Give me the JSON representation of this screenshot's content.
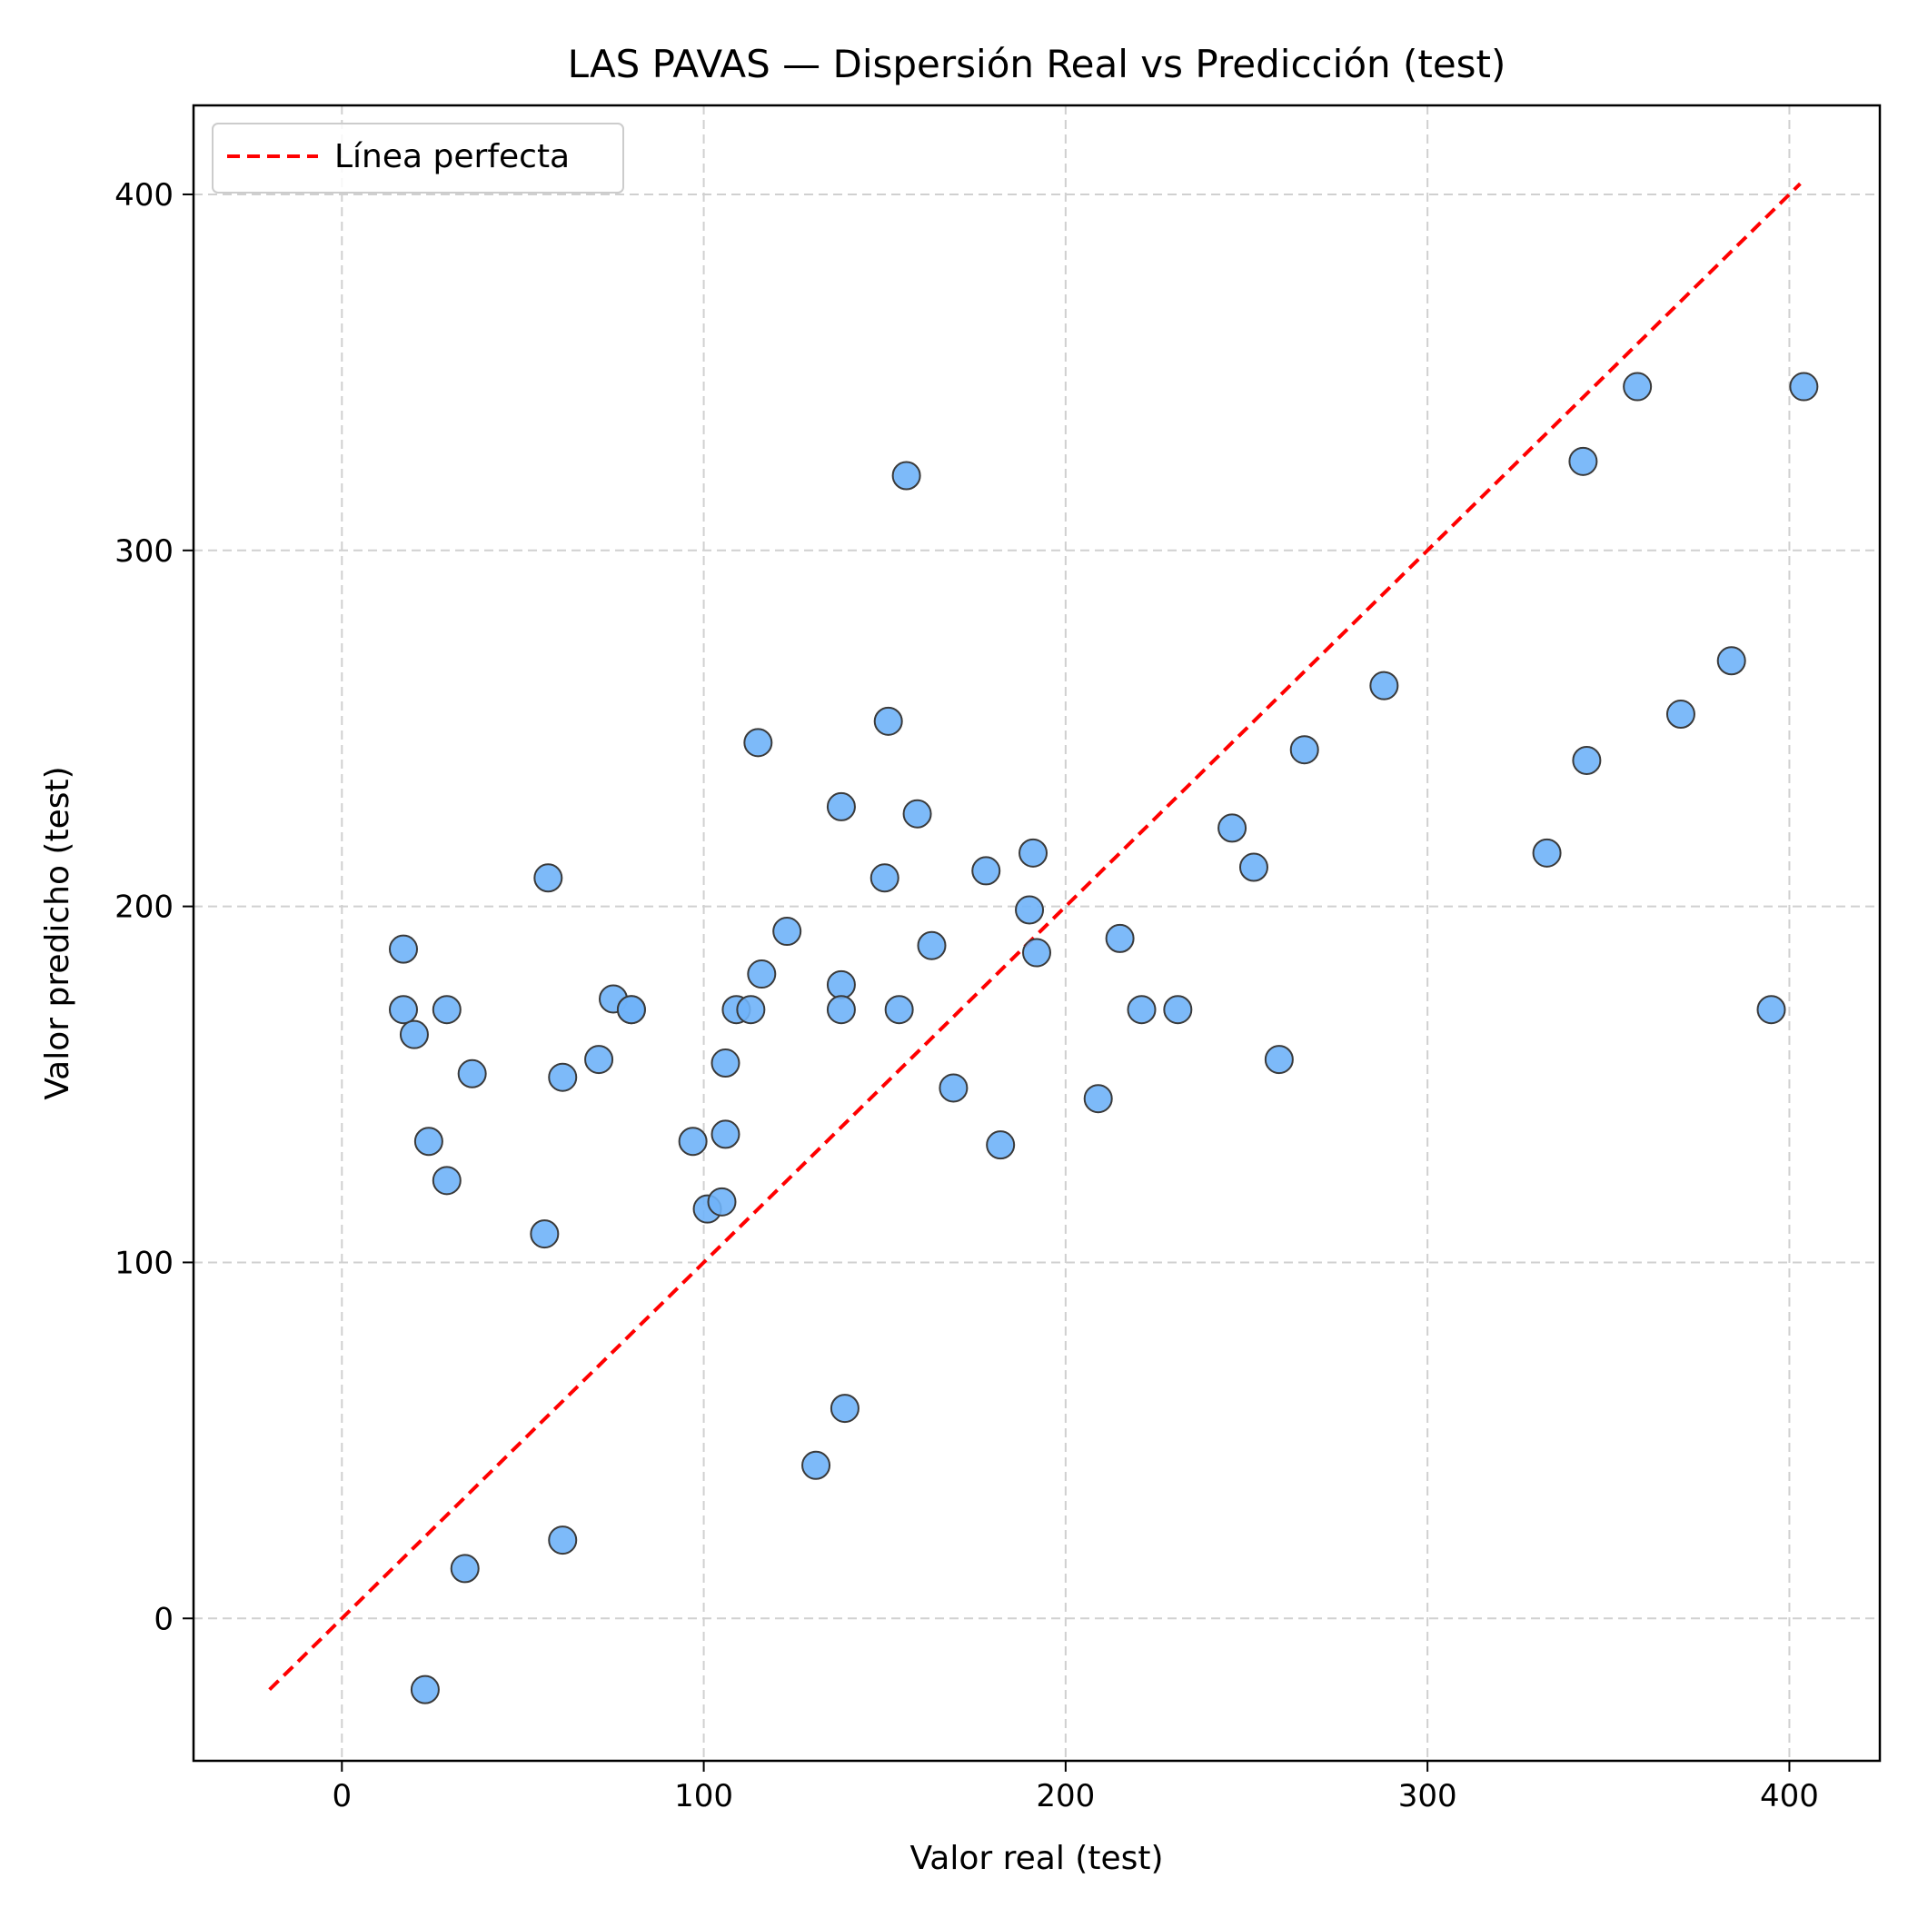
{
  "chart_data": {
    "type": "scatter",
    "title": "LAS PAVAS — Dispersión Real vs Predicción (test)",
    "xlabel": "Valor real (test)",
    "ylabel": "Valor predicho (test)",
    "xlim": [
      -41,
      425
    ],
    "ylim": [
      -40,
      425
    ],
    "xticks": [
      0,
      100,
      200,
      300,
      400
    ],
    "yticks": [
      0,
      100,
      200,
      300,
      400
    ],
    "grid": true,
    "legend_position": "top-left",
    "legend": [
      {
        "label": "Línea perfecta",
        "style": "dashed",
        "color": "#ff0000"
      }
    ],
    "reference_line": {
      "name": "Línea perfecta",
      "x": [
        -20,
        403
      ],
      "y": [
        -20,
        403
      ],
      "color": "#ff0000",
      "style": "dashed"
    },
    "series": [
      {
        "marker_color": "#6fb2f8",
        "marker_edge_color": "#3a3a3a",
        "points": [
          [
            17,
            188
          ],
          [
            17,
            171
          ],
          [
            20,
            164
          ],
          [
            29,
            171
          ],
          [
            24,
            134
          ],
          [
            29,
            123
          ],
          [
            36,
            153
          ],
          [
            23,
            -20
          ],
          [
            34,
            14
          ],
          [
            57,
            208
          ],
          [
            56,
            108
          ],
          [
            61,
            152
          ],
          [
            61,
            22
          ],
          [
            71,
            157
          ],
          [
            75,
            174
          ],
          [
            80,
            171
          ],
          [
            80,
            171
          ],
          [
            97,
            134
          ],
          [
            101,
            115
          ],
          [
            105,
            117
          ],
          [
            106,
            156
          ],
          [
            106,
            136
          ],
          [
            109,
            171
          ],
          [
            113,
            171
          ],
          [
            115,
            246
          ],
          [
            116,
            181
          ],
          [
            123,
            193
          ],
          [
            131,
            43
          ],
          [
            138,
            228
          ],
          [
            138,
            178
          ],
          [
            138,
            171
          ],
          [
            139,
            59
          ],
          [
            150,
            208
          ],
          [
            151,
            252
          ],
          [
            154,
            171
          ],
          [
            156,
            321
          ],
          [
            159,
            226
          ],
          [
            163,
            189
          ],
          [
            169,
            149
          ],
          [
            178,
            210
          ],
          [
            182,
            133
          ],
          [
            190,
            199
          ],
          [
            191,
            215
          ],
          [
            192,
            187
          ],
          [
            209,
            146
          ],
          [
            215,
            191
          ],
          [
            221,
            171
          ],
          [
            231,
            171
          ],
          [
            246,
            222
          ],
          [
            252,
            211
          ],
          [
            259,
            157
          ],
          [
            266,
            244
          ],
          [
            288,
            262
          ],
          [
            333,
            215
          ],
          [
            343,
            325
          ],
          [
            344,
            241
          ],
          [
            358,
            346
          ],
          [
            370,
            254
          ],
          [
            384,
            269
          ],
          [
            395,
            171
          ],
          [
            404,
            346
          ]
        ]
      }
    ]
  }
}
